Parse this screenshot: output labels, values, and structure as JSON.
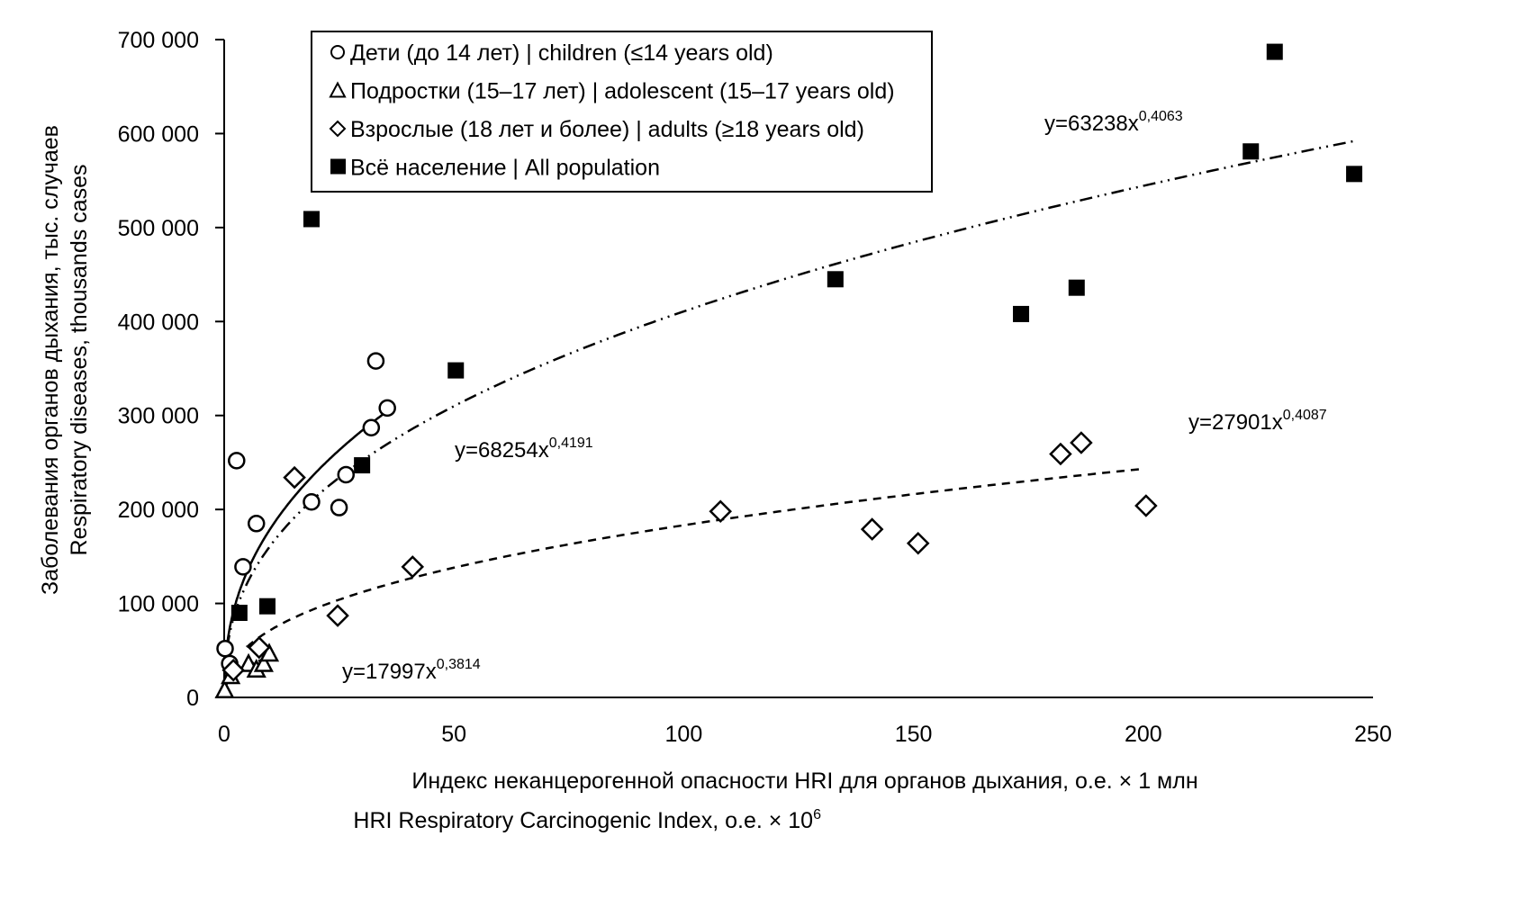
{
  "chart_data": {
    "type": "scatter",
    "xlabel": "Индекс неканцерогенной опасности HRI для органов дыхания, о.е. × 1 млн",
    "xlabel2": "HRI Respiratory Carcinogenic Index, o.e. × 10",
    "xlabel2_sup": "6",
    "ylabel": "Заболевания органов дыхания, тыс. случаев",
    "ylabel2": "Respiratory diseases, thousands cases",
    "xlim": [
      0,
      250
    ],
    "ylim": [
      0,
      700000
    ],
    "xticks": [
      0,
      50,
      100,
      150,
      200,
      250
    ],
    "xtick_labels": [
      "0",
      "50",
      "100",
      "150",
      "200",
      "250"
    ],
    "yticks": [
      0,
      100000,
      200000,
      300000,
      400000,
      500000,
      600000,
      700000
    ],
    "ytick_labels": [
      "0",
      "100 000",
      "200 000",
      "300 000",
      "400 000",
      "500 000",
      "600 000",
      "700 000"
    ],
    "grid": false,
    "legend_position": "top-left",
    "series": [
      {
        "name": "Дети (до 14 лет) | children (≤14 years old)",
        "marker": "circle",
        "points": [
          [
            0.2,
            52000
          ],
          [
            1.2,
            36000
          ],
          [
            2.7,
            252000
          ],
          [
            4.1,
            139000
          ],
          [
            7,
            185000
          ],
          [
            19,
            208000
          ],
          [
            25,
            202000
          ],
          [
            26.5,
            237000
          ],
          [
            32,
            287000
          ],
          [
            33,
            358000
          ],
          [
            35.5,
            308000
          ]
        ],
        "trend": {
          "a": 68254,
          "b": 0.4191,
          "label": "y=68254x",
          "exp_label": "0,4191",
          "range": [
            0.05,
            35.5
          ],
          "style": "solid"
        }
      },
      {
        "name": "Подростки (15–17 лет) | adolescent (15–17 years old)",
        "marker": "triangle",
        "points": [
          [
            0.1,
            7000
          ],
          [
            1.4,
            22000
          ],
          [
            5.3,
            35000
          ],
          [
            7,
            29000
          ],
          [
            8.6,
            35000
          ],
          [
            9.8,
            46000
          ]
        ],
        "trend": {
          "a": 17997,
          "b": 0.3814,
          "label": "y=17997x",
          "exp_label": "0,3814",
          "range": [
            0.05,
            10
          ],
          "style": "dotted"
        }
      },
      {
        "name": "Взрослые (18 лет и более) | adults (≥18 years old)",
        "marker": "diamond",
        "points": [
          [
            2,
            29000
          ],
          [
            7.6,
            53000
          ],
          [
            15.3,
            234000
          ],
          [
            24.7,
            87000
          ],
          [
            41,
            139000
          ],
          [
            108,
            198000
          ],
          [
            141,
            179000
          ],
          [
            151,
            164000
          ],
          [
            182,
            259000
          ],
          [
            186.5,
            271000
          ],
          [
            200.6,
            204000
          ]
        ],
        "trend": {
          "a": 27901,
          "b": 0.4087,
          "label": "y=27901x",
          "exp_label": "0,4087",
          "range": [
            5,
            200
          ],
          "style": "dashed"
        }
      },
      {
        "name": "Всё население | All population",
        "marker": "square",
        "points": [
          [
            3.3,
            90000
          ],
          [
            9.4,
            97000
          ],
          [
            19,
            509000
          ],
          [
            30,
            247000
          ],
          [
            50.4,
            348000
          ],
          [
            133,
            445000
          ],
          [
            173.4,
            408000
          ],
          [
            185.5,
            436000
          ],
          [
            223.4,
            581000
          ],
          [
            228.6,
            687000
          ],
          [
            245.9,
            557000
          ]
        ],
        "trend": {
          "a": 63238,
          "b": 0.4063,
          "label": "y=63238x",
          "exp_label": "0,4063",
          "range": [
            0.05,
            246
          ],
          "style": "dashdot"
        }
      }
    ]
  }
}
